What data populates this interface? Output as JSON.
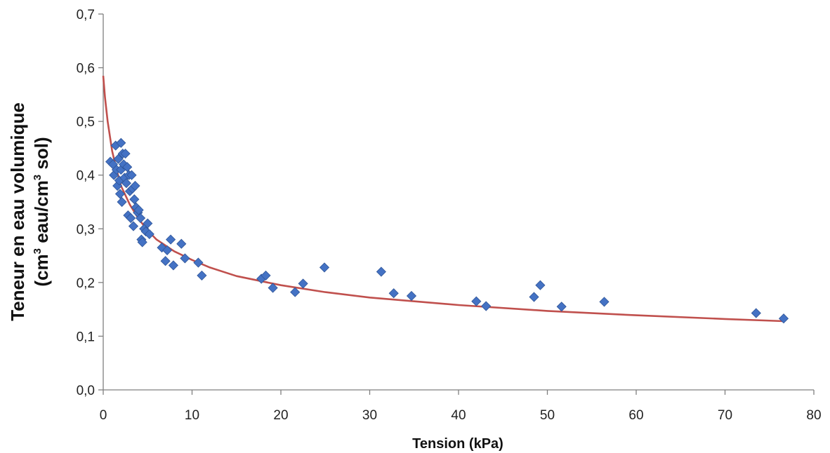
{
  "chart_data": {
    "type": "scatter",
    "title": "",
    "xlabel": "Tension (kPa)",
    "ylabel": {
      "line1": "Teneur en eau volumique",
      "line2_part1": "(cm",
      "line2_sup1": "3",
      "line2_part2": " eau/cm",
      "line2_sup2": "3",
      "line2_part3": " sol)"
    },
    "xlim": [
      0,
      80
    ],
    "ylim": [
      0,
      0.7
    ],
    "x_ticks": [
      0,
      10,
      20,
      30,
      40,
      50,
      60,
      70,
      80
    ],
    "x_tick_labels": [
      "0",
      "10",
      "20",
      "30",
      "40",
      "50",
      "60",
      "70",
      "80"
    ],
    "y_ticks": [
      0,
      0.1,
      0.2,
      0.3,
      0.4,
      0.5,
      0.6,
      0.7
    ],
    "y_tick_labels": [
      "0,0",
      "0,1",
      "0,2",
      "0,3",
      "0,4",
      "0,5",
      "0,6",
      "0,7"
    ],
    "grid": false,
    "legend": "none",
    "colors": {
      "marker": "#4472c4",
      "marker_edge": "#2f5597",
      "curve": "#c0504d",
      "axis": "#7f7f7f"
    },
    "series": [
      {
        "type": "scatter",
        "marker": "diamond",
        "points": [
          [
            0.8,
            0.425
          ],
          [
            1.1,
            0.42
          ],
          [
            1.2,
            0.4
          ],
          [
            1.4,
            0.455
          ],
          [
            1.5,
            0.41
          ],
          [
            1.6,
            0.38
          ],
          [
            1.7,
            0.43
          ],
          [
            1.8,
            0.39
          ],
          [
            1.9,
            0.365
          ],
          [
            2.0,
            0.46
          ],
          [
            2.0,
            0.41
          ],
          [
            2.1,
            0.35
          ],
          [
            2.2,
            0.44
          ],
          [
            2.3,
            0.42
          ],
          [
            2.4,
            0.395
          ],
          [
            2.5,
            0.44
          ],
          [
            2.6,
            0.385
          ],
          [
            2.7,
            0.415
          ],
          [
            2.8,
            0.325
          ],
          [
            2.9,
            0.4
          ],
          [
            3.0,
            0.37
          ],
          [
            3.1,
            0.32
          ],
          [
            3.2,
            0.4
          ],
          [
            3.3,
            0.375
          ],
          [
            3.4,
            0.305
          ],
          [
            3.5,
            0.355
          ],
          [
            3.6,
            0.38
          ],
          [
            3.7,
            0.34
          ],
          [
            3.9,
            0.33
          ],
          [
            4.0,
            0.335
          ],
          [
            4.2,
            0.32
          ],
          [
            4.3,
            0.28
          ],
          [
            4.4,
            0.275
          ],
          [
            4.6,
            0.3
          ],
          [
            4.8,
            0.295
          ],
          [
            5.0,
            0.31
          ],
          [
            5.2,
            0.29
          ],
          [
            6.6,
            0.265
          ],
          [
            7.0,
            0.24
          ],
          [
            7.2,
            0.26
          ],
          [
            7.6,
            0.28
          ],
          [
            7.9,
            0.232
          ],
          [
            8.8,
            0.272
          ],
          [
            9.2,
            0.245
          ],
          [
            10.7,
            0.237
          ],
          [
            11.1,
            0.213
          ],
          [
            17.8,
            0.207
          ],
          [
            18.3,
            0.213
          ],
          [
            19.1,
            0.19
          ],
          [
            21.6,
            0.182
          ],
          [
            22.5,
            0.198
          ],
          [
            24.9,
            0.228
          ],
          [
            31.3,
            0.22
          ],
          [
            32.7,
            0.18
          ],
          [
            34.7,
            0.175
          ],
          [
            42.0,
            0.165
          ],
          [
            43.1,
            0.156
          ],
          [
            48.5,
            0.173
          ],
          [
            49.2,
            0.195
          ],
          [
            51.6,
            0.155
          ],
          [
            56.4,
            0.164
          ],
          [
            73.5,
            0.143
          ],
          [
            76.6,
            0.133
          ]
        ]
      },
      {
        "type": "line",
        "points": [
          [
            0.0,
            0.585
          ],
          [
            0.2,
            0.545
          ],
          [
            0.5,
            0.5
          ],
          [
            1.0,
            0.445
          ],
          [
            1.5,
            0.41
          ],
          [
            2.0,
            0.38
          ],
          [
            3.0,
            0.345
          ],
          [
            4.0,
            0.318
          ],
          [
            5.0,
            0.297
          ],
          [
            6.0,
            0.28
          ],
          [
            8.0,
            0.258
          ],
          [
            10.0,
            0.242
          ],
          [
            12.0,
            0.228
          ],
          [
            15.0,
            0.212
          ],
          [
            20.0,
            0.195
          ],
          [
            25.0,
            0.182
          ],
          [
            30.0,
            0.172
          ],
          [
            40.0,
            0.158
          ],
          [
            50.0,
            0.147
          ],
          [
            60.0,
            0.139
          ],
          [
            70.0,
            0.132
          ],
          [
            76.6,
            0.128
          ]
        ]
      }
    ]
  }
}
